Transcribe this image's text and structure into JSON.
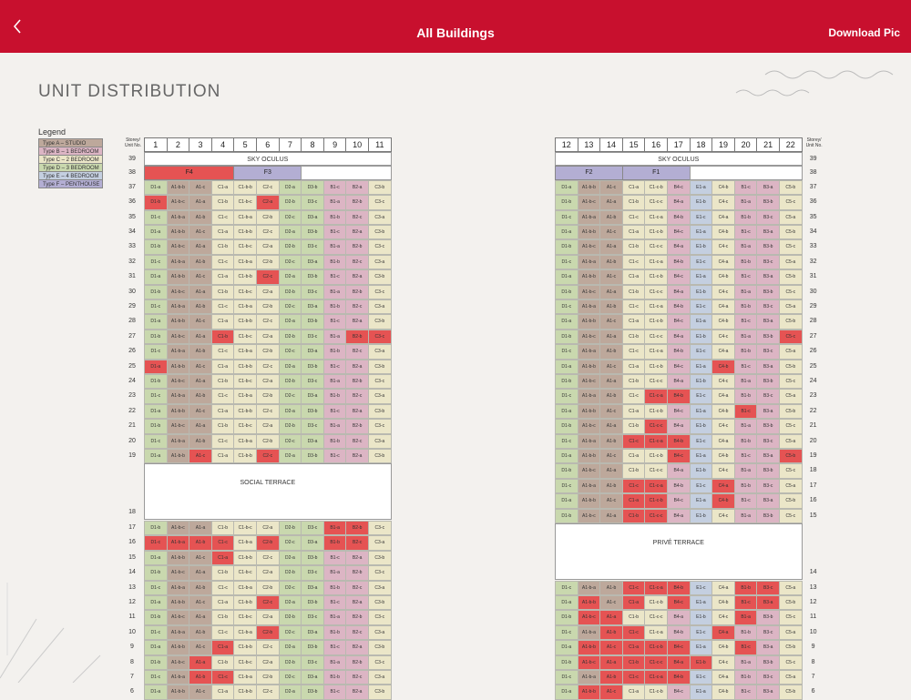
{
  "topbar": {
    "title": "All Buildings",
    "download_label": "Download Pic"
  },
  "heading": "UNIT DISTRIBUTION",
  "legend": {
    "title": "Legend",
    "items": [
      {
        "label": "Type A – STUDIO",
        "color": "#bda89b"
      },
      {
        "label": "Type B – 1 BEDROOM",
        "color": "#dcb5c4"
      },
      {
        "label": "Type C – 2 BEDROOM",
        "color": "#ebe6c8"
      },
      {
        "label": "Type D – 3 BEDROOM",
        "color": "#c9d8ae"
      },
      {
        "label": "Type E – 4 BEDROOM",
        "color": "#c4cfe0"
      },
      {
        "label": "Type F – PENTHOUSE",
        "color": "#b3aed3"
      }
    ]
  },
  "sold_color": "#e55353",
  "storey_header": "Storey/ Unit No.",
  "left": {
    "unit_numbers": [
      "1",
      "2",
      "3",
      "4",
      "5",
      "6",
      "7",
      "8",
      "9",
      "10",
      "11"
    ],
    "sky_label": "SKY OCULUS",
    "terrace_label": "SOCIAL TERRACE",
    "penthouses": [
      {
        "label": "F4",
        "span": 4,
        "sold": true
      },
      {
        "label": "F3",
        "span": 3,
        "sold": false
      }
    ],
    "storeys_top": [
      "39",
      "38",
      "37",
      "36",
      "35",
      "34",
      "33",
      "32",
      "31",
      "30",
      "29",
      "28",
      "27",
      "26",
      "25",
      "24",
      "23",
      "22",
      "21",
      "20",
      "19"
    ],
    "storey_terrace": "18",
    "storeys_bottom": [
      "17",
      "16",
      "15",
      "14",
      "13",
      "12",
      "11",
      "10",
      "9",
      "8",
      "7",
      "6"
    ],
    "unit_types": [
      "D1",
      "A1-b",
      "A1",
      "C1",
      "C1-b",
      "C2",
      "D2",
      "D3",
      "B1",
      "B2",
      "C3"
    ],
    "types": [
      "D",
      "A",
      "A",
      "C",
      "C",
      "C",
      "D",
      "D",
      "B",
      "B",
      "C"
    ],
    "sold": {
      "37": [],
      "36": [
        0,
        5
      ],
      "35": [],
      "34": [],
      "33": [],
      "32": [],
      "31": [
        5
      ],
      "30": [],
      "29": [],
      "28": [],
      "27": [
        3,
        9,
        10
      ],
      "26": [],
      "25": [
        0
      ],
      "24": [],
      "23": [],
      "22": [],
      "21": [],
      "20": [],
      "19": [
        2,
        5
      ],
      "17": [
        8,
        9
      ],
      "16": [
        0,
        1,
        2,
        3,
        5,
        8,
        9
      ],
      "15": [
        3
      ],
      "14": [],
      "13": [],
      "12": [
        5
      ],
      "11": [],
      "10": [
        5
      ],
      "9": [
        3
      ],
      "8": [
        2
      ],
      "7": [
        2,
        3
      ],
      "6": []
    }
  },
  "right": {
    "unit_numbers": [
      "12",
      "13",
      "14",
      "15",
      "16",
      "17",
      "18",
      "19",
      "20",
      "21",
      "22"
    ],
    "sky_label": "SKY OCULUS",
    "terrace_label": "PRIVÉ TERRACE",
    "penthouses": [
      {
        "label": "F2",
        "span": 3,
        "sold": false
      },
      {
        "label": "F1",
        "span": 3,
        "sold": false
      }
    ],
    "storeys_top": [
      "39",
      "38",
      "37",
      "36",
      "35",
      "34",
      "33",
      "32",
      "31",
      "30",
      "29",
      "28",
      "27",
      "26",
      "25",
      "24",
      "23",
      "22",
      "21",
      "20",
      "19",
      "18",
      "17",
      "16",
      "15"
    ],
    "storey_terrace": "14",
    "storeys_bottom": [
      "13",
      "12",
      "11",
      "10",
      "9",
      "8",
      "7",
      "6"
    ],
    "unit_types": [
      "D1",
      "A1-b",
      "A1",
      "C1",
      "C1-c",
      "B4",
      "E1",
      "C4",
      "B1",
      "B3",
      "C5"
    ],
    "types": [
      "D",
      "A",
      "A",
      "C",
      "C",
      "B",
      "E",
      "C",
      "B",
      "B",
      "C"
    ],
    "sold": {
      "37": [],
      "36": [],
      "35": [],
      "34": [],
      "33": [],
      "32": [],
      "31": [],
      "30": [],
      "29": [],
      "28": [],
      "27": [
        10
      ],
      "26": [],
      "25": [
        7
      ],
      "24": [],
      "23": [
        4,
        5
      ],
      "22": [
        8
      ],
      "21": [
        4
      ],
      "20": [
        3,
        4,
        5
      ],
      "19": [
        5,
        10
      ],
      "18": [],
      "17": [
        3,
        4,
        7
      ],
      "16": [
        3,
        4,
        7
      ],
      "15": [
        3,
        4
      ],
      "13": [
        3,
        4,
        5,
        8,
        9
      ],
      "12": [
        1,
        3,
        5,
        8,
        9
      ],
      "11": [
        1,
        2,
        8
      ],
      "10": [
        2,
        3,
        7
      ],
      "9": [
        1,
        2,
        3,
        4,
        5,
        8
      ],
      "8": [
        1,
        2,
        3,
        4,
        5,
        6
      ],
      "7": [
        2,
        3,
        4,
        5
      ],
      "6": [
        1,
        2
      ]
    }
  }
}
